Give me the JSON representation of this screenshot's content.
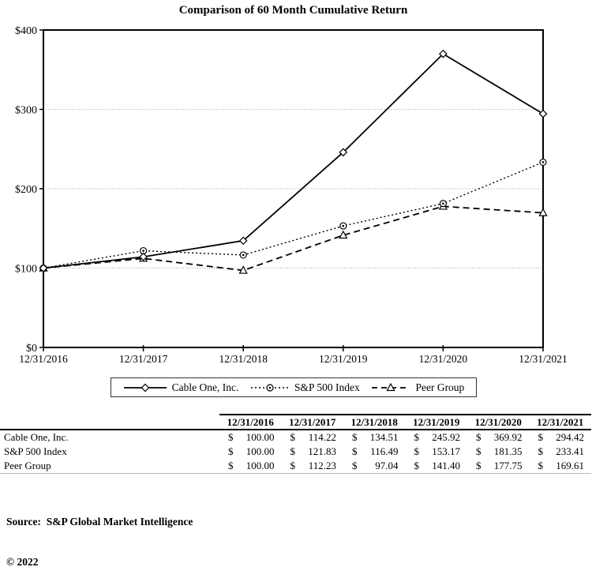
{
  "chart_data": {
    "type": "line",
    "title": "Comparison of 60 Month Cumulative Return",
    "x": [
      "12/31/2016",
      "12/31/2017",
      "12/31/2018",
      "12/31/2019",
      "12/31/2020",
      "12/31/2021"
    ],
    "series": [
      {
        "name": "Cable One, Inc.",
        "values": [
          100.0,
          114.22,
          134.51,
          245.92,
          369.92,
          294.42
        ],
        "line": "solid",
        "marker": "diamond"
      },
      {
        "name": "S&P 500 Index",
        "values": [
          100.0,
          121.83,
          116.49,
          153.17,
          181.35,
          233.41
        ],
        "line": "dotted",
        "marker": "circle-dot"
      },
      {
        "name": "Peer Group",
        "values": [
          100.0,
          112.23,
          97.04,
          141.4,
          177.75,
          169.61
        ],
        "line": "dashed",
        "marker": "triangle"
      }
    ],
    "ylim": [
      0,
      400
    ],
    "yticks": [
      "$0",
      "$100",
      "$200",
      "$300",
      "$400"
    ],
    "grid": "horizontal-dotted",
    "legend_position": "bottom",
    "colors": {
      "line": "#000000",
      "grid": "#aaaaaa",
      "background": "#ffffff"
    }
  },
  "table": {
    "currency_symbol": "$",
    "headers": [
      "12/31/2016",
      "12/31/2017",
      "12/31/2018",
      "12/31/2019",
      "12/31/2020",
      "12/31/2021"
    ],
    "rows": [
      {
        "label": "Cable One, Inc.",
        "values": [
          "100.00",
          "114.22",
          "134.51",
          "245.92",
          "369.92",
          "294.42"
        ]
      },
      {
        "label": "S&P 500 Index",
        "values": [
          "100.00",
          "121.83",
          "116.49",
          "153.17",
          "181.35",
          "233.41"
        ]
      },
      {
        "label": "Peer Group",
        "values": [
          "100.00",
          "112.23",
          "97.04",
          "141.40",
          "177.75",
          "169.61"
        ]
      }
    ]
  },
  "footer": {
    "source": "Source:  S&P Global Market Intelligence",
    "copyright": "© 2022"
  }
}
